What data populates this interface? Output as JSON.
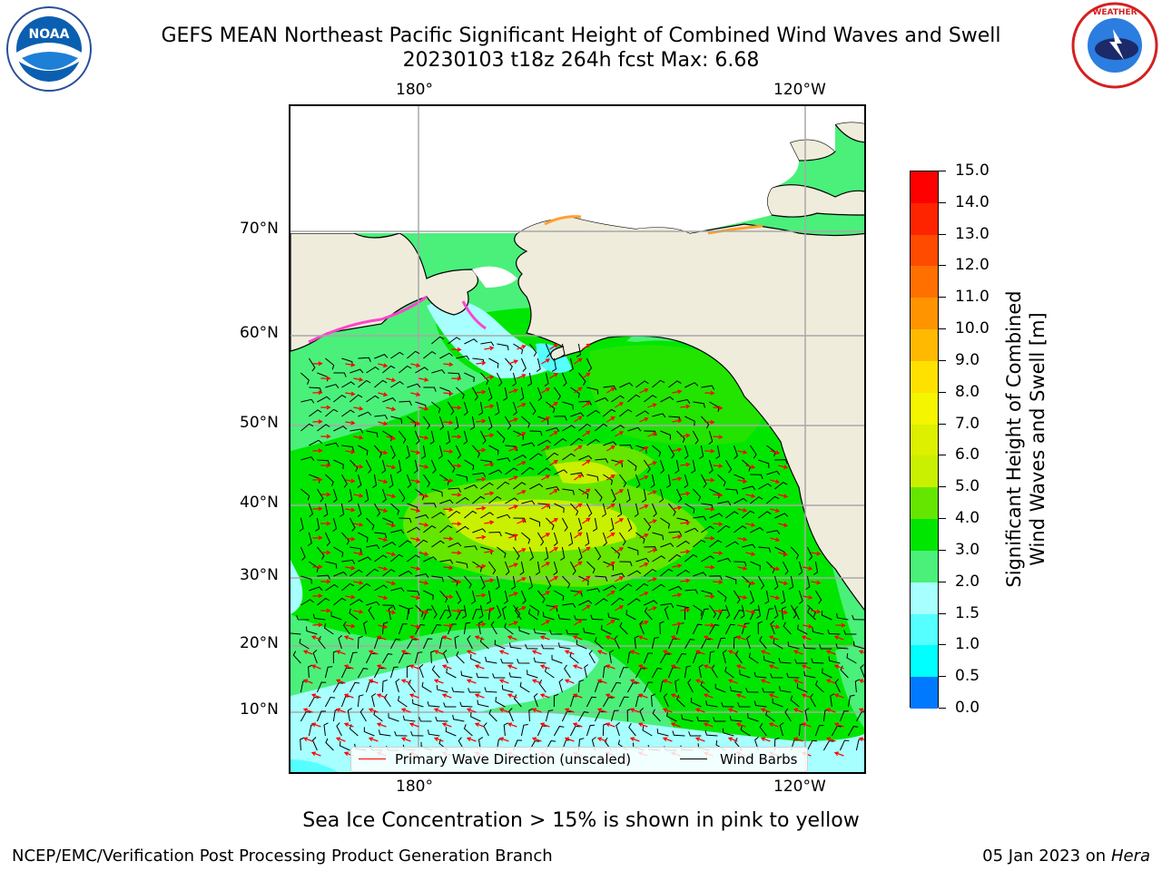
{
  "header": {
    "title_line1": "GEFS MEAN Northeast Pacific Significant Height of Combined Wind Waves and Swell",
    "title_line2": "20230103 t18z 264h fcst   Max: 6.68"
  },
  "logos": {
    "left": "NOAA",
    "right": "NATIONAL WEATHER SERVICE"
  },
  "map": {
    "lon_labels": [
      "180°",
      "120°W"
    ],
    "lat_labels": [
      "70°N",
      "60°N",
      "50°N",
      "40°N",
      "30°N",
      "20°N",
      "10°N"
    ],
    "land_color": "#efecdc",
    "ocean_base_color": "#4af07a"
  },
  "legend": {
    "wave_label": "Primary Wave Direction (unscaled)",
    "wave_color": "#ff0000",
    "wind_label": "Wind Barbs",
    "wind_color": "#000000"
  },
  "colorbar": {
    "title_line1": "Significant Height of Combined",
    "title_line2": "Wind Waves and Swell [m]",
    "ticks": [
      "15.0",
      "14.0",
      "13.0",
      "12.0",
      "11.0",
      "10.0",
      "9.0",
      "8.0",
      "7.0",
      "6.0",
      "5.0",
      "4.0",
      "3.0",
      "2.0",
      "1.5",
      "1.0",
      "0.5",
      "0.0"
    ],
    "colors": [
      "#ff0000",
      "#ff2400",
      "#ff4b00",
      "#ff7000",
      "#ff9400",
      "#ffb900",
      "#ffe100",
      "#f5f500",
      "#dcf000",
      "#c8f000",
      "#64e600",
      "#00e600",
      "#4af07a",
      "#a7ffff",
      "#55ffff",
      "#00ffff",
      "#0079ff",
      "#0000ff"
    ]
  },
  "note": "Sea Ice Concentration > 15% is shown in pink to yellow",
  "footer": {
    "left": "NCEP/EMC/Verification Post Processing Product Generation Branch",
    "right_date": "05 Jan 2023 on ",
    "right_host": "Hera"
  }
}
